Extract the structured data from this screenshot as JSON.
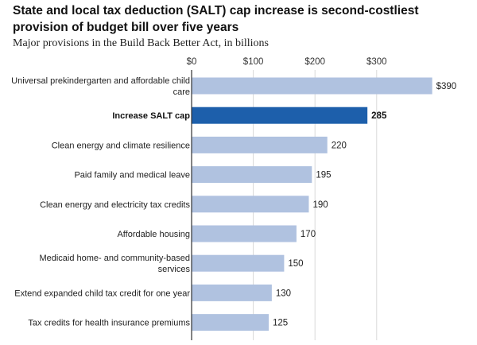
{
  "chart_data": {
    "type": "bar",
    "orientation": "horizontal",
    "title": "State and local tax deduction (SALT) cap increase is second-costliest provision of budget bill over five years",
    "subtitle": "Major provisions in the Build Back Better Act, in billions",
    "categories": [
      "Universal prekindergarten and affordable child care",
      "Increase SALT cap",
      "Clean energy and climate resilience",
      "Paid family and medical leave",
      "Clean energy and electricity tax credits",
      "Affordable housing",
      "Medicaid home- and community-based services",
      "Extend expanded child tax credit for one year",
      "Tax credits for health insurance premiums"
    ],
    "category_lines": [
      [
        "Universal prekindergarten and affordable child",
        "care"
      ],
      [
        "Increase SALT cap"
      ],
      [
        "Clean energy and climate resilience"
      ],
      [
        "Paid family and medical leave"
      ],
      [
        "Clean energy and electricity tax credits"
      ],
      [
        "Affordable housing"
      ],
      [
        "Medicaid home- and community-based",
        "services"
      ],
      [
        "Extend expanded child tax credit for one year"
      ],
      [
        "Tax credits for health insurance premiums"
      ]
    ],
    "values": [
      390,
      285,
      220,
      195,
      190,
      170,
      150,
      130,
      125
    ],
    "value_labels": [
      "$390",
      "285",
      "220",
      "195",
      "190",
      "170",
      "150",
      "130",
      "125"
    ],
    "highlight_index": 1,
    "xlim": [
      0,
      400
    ],
    "xticks": [
      0,
      100,
      200,
      300
    ],
    "xtick_labels": [
      "$0",
      "$100",
      "$200",
      "$300"
    ],
    "xlabel": "",
    "ylabel": "",
    "grid": true,
    "colors": {
      "bar": "#b0c2e0",
      "bar_highlight": "#1d5fab",
      "grid": "#d9d9d9",
      "axis": "#333333"
    }
  }
}
